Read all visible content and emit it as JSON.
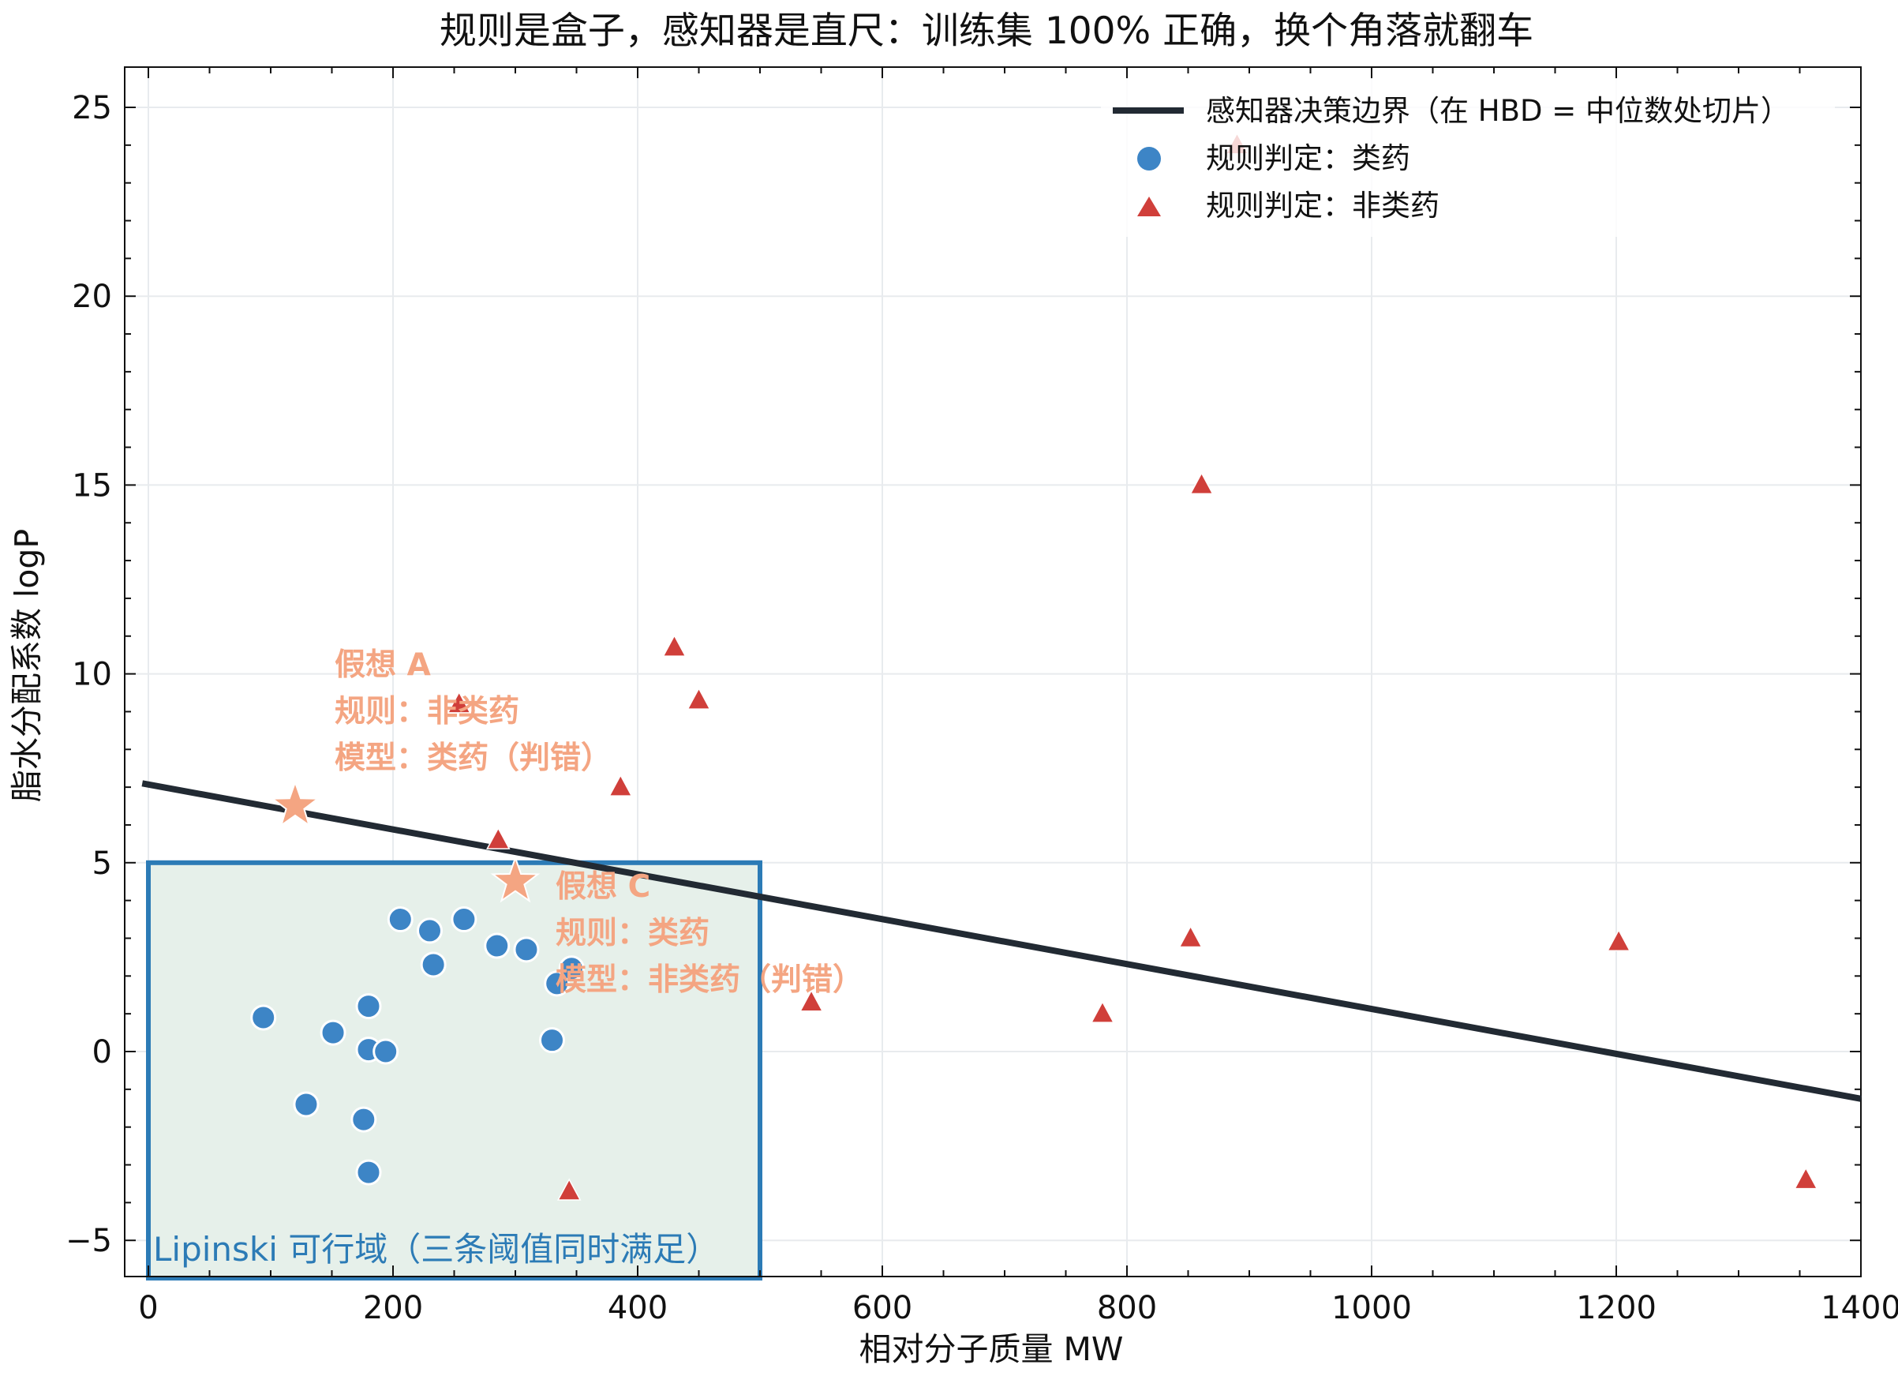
{
  "chart_data": {
    "type": "scatter",
    "title": "规则是盒子，感知器是直尺：训练集 100% 正确，换个角落就翻车",
    "xlabel": "相对分子质量 MW",
    "ylabel": "脂水分配系数 logP",
    "xlim": [
      -20,
      1400
    ],
    "ylim": [
      -6,
      26
    ],
    "xticks": [
      0,
      200,
      400,
      600,
      800,
      1000,
      1200,
      1400
    ],
    "yticks": [
      -5,
      0,
      5,
      10,
      15,
      20,
      25
    ],
    "ytick_labels": [
      "−5",
      "0",
      "5",
      "10",
      "15",
      "20",
      "25"
    ],
    "grid": true,
    "legend_position": "top-right",
    "region": {
      "label": "Lipinski 可行域（三条阈值同时满足）",
      "x_range": [
        0,
        500
      ],
      "y_range": [
        -6,
        5
      ],
      "color": "#2c7bb6"
    },
    "boundary_line": {
      "name": "感知器决策边界（在 HBD = 中位数处切片）",
      "points": [
        [
          -5,
          7.1
        ],
        [
          1400,
          -1.25
        ]
      ],
      "color": "#222a33"
    },
    "series": [
      {
        "name": "规则判定：类药",
        "marker": "circle",
        "color": "#3d85c6",
        "points": [
          [
            94,
            0.9
          ],
          [
            129,
            -1.4
          ],
          [
            151,
            0.5
          ],
          [
            176,
            -1.8
          ],
          [
            180,
            0.05
          ],
          [
            180,
            1.2
          ],
          [
            180,
            -3.2
          ],
          [
            194,
            0
          ],
          [
            206,
            3.5
          ],
          [
            230,
            3.2
          ],
          [
            233,
            2.3
          ],
          [
            258,
            3.5
          ],
          [
            285,
            2.8
          ],
          [
            309,
            2.7
          ],
          [
            330,
            0.3
          ],
          [
            334,
            1.8
          ],
          [
            346,
            2.2
          ]
        ]
      },
      {
        "name": "规则判定：非类药",
        "marker": "triangle",
        "color": "#d03f3a",
        "points": [
          [
            254,
            9.2
          ],
          [
            286,
            5.6
          ],
          [
            344,
            -3.7
          ],
          [
            386,
            7.0
          ],
          [
            430,
            10.7
          ],
          [
            450,
            9.3
          ],
          [
            542,
            1.3
          ],
          [
            780,
            1.0
          ],
          [
            852,
            3.0
          ],
          [
            861,
            15.0
          ],
          [
            890,
            24.0
          ],
          [
            1202,
            2.9
          ],
          [
            1355,
            -3.4
          ]
        ]
      }
    ],
    "hypotheses": [
      {
        "point": [
          120,
          6.5
        ],
        "marker": "star",
        "color": "#f4a582",
        "lines": [
          "假想 A",
          "规则：非类药",
          "模型：类药（判错）"
        ]
      },
      {
        "point": [
          300,
          4.5
        ],
        "marker": "star",
        "color": "#f4a582",
        "lines": [
          "假想 C",
          "规则：类药",
          "模型：非类药（判错）"
        ]
      }
    ]
  }
}
